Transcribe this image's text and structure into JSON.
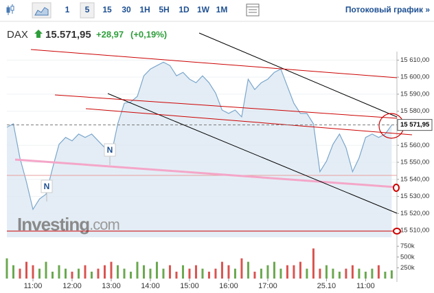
{
  "toolbar": {
    "intervals": [
      "1",
      "5",
      "15",
      "30",
      "1H",
      "5H",
      "1D",
      "1W",
      "1M"
    ],
    "selected_index": 1,
    "stream_link": "Потоковый график »"
  },
  "header": {
    "symbol": "DAX",
    "price": "15.571,95",
    "change": "+28,97",
    "change_percent": "(+0,19%)"
  },
  "watermark": {
    "brand": "Investing",
    "suffix": ".com"
  },
  "chart_data": [
    {
      "type": "area",
      "color": "#7aa6cc",
      "x": [
        0,
        1,
        2,
        3,
        4,
        5,
        6,
        7,
        8,
        9,
        10,
        11,
        12,
        13,
        14,
        15,
        16,
        17,
        18,
        19,
        20,
        21,
        22,
        23,
        24,
        25,
        26,
        27,
        28,
        29,
        30,
        31,
        32,
        33,
        34,
        35,
        36,
        37,
        38,
        39,
        40,
        41,
        42,
        43,
        44,
        45,
        46,
        47,
        48,
        49,
        50,
        51,
        52,
        53,
        54,
        55,
        56,
        57,
        58,
        59
      ],
      "values": [
        15570.6,
        15572.6,
        15552.6,
        15538.5,
        15522.4,
        15528.5,
        15531.3,
        15546.5,
        15560.6,
        15564.6,
        15562.6,
        15566.6,
        15564.6,
        15566.6,
        15562.6,
        15558.6,
        15554.6,
        15572.6,
        15584.7,
        15585.5,
        15588.7,
        15600.8,
        15604.8,
        15606.8,
        15608.8,
        15606.8,
        15600.8,
        15602.8,
        15598.8,
        15596.7,
        15600.8,
        15596.7,
        15590.7,
        15580.7,
        15578.7,
        15580.7,
        15576.7,
        15598.8,
        15592.7,
        15596.7,
        15598.8,
        15602.8,
        15604.8,
        15594.7,
        15584.7,
        15578.7,
        15578.7,
        15572.6,
        15544.5,
        15550.6,
        15560.6,
        15566.6,
        15558.6,
        15544.5,
        15552.6,
        15564.6,
        15566.6,
        15564.6,
        15566.6,
        15571.9
      ],
      "xlim": [
        0,
        59.8
      ],
      "xticks": [
        {
          "value": 4,
          "label": "11:00"
        },
        {
          "value": 10,
          "label": "12:00"
        },
        {
          "value": 16,
          "label": "13:00"
        },
        {
          "value": 22,
          "label": "14:00"
        },
        {
          "value": 28,
          "label": "15:00"
        },
        {
          "value": 34,
          "label": "16:00"
        },
        {
          "value": 40,
          "label": "17:00"
        },
        {
          "value": 49,
          "label": "25.10"
        },
        {
          "value": 55,
          "label": "11:00"
        }
      ],
      "ylim": [
        15506,
        15615
      ],
      "yticks": [
        {
          "value": 15610,
          "label": "15 610,00"
        },
        {
          "value": 15600,
          "label": "15 600,00"
        },
        {
          "value": 15590,
          "label": "15 590,00"
        },
        {
          "value": 15580,
          "label": "15 580,00"
        },
        {
          "value": 15560,
          "label": "15 560,00"
        },
        {
          "value": 15550,
          "label": "15 550,00"
        },
        {
          "value": 15540,
          "label": "15 540,00"
        },
        {
          "value": 15530,
          "label": "15 530,00"
        },
        {
          "value": 15520,
          "label": "15 520,00"
        },
        {
          "value": 15510,
          "label": "15 510,00"
        }
      ],
      "grid": true,
      "last_price": 15571.95,
      "last_price_label": "15 571,95",
      "news_markers": [
        "N",
        "N"
      ]
    },
    {
      "type": "bar",
      "up_color": "#6aa84f",
      "down_color": "#d9534f",
      "x": [
        0,
        1,
        2,
        3,
        4,
        5,
        6,
        7,
        8,
        9,
        10,
        11,
        12,
        13,
        14,
        15,
        16,
        17,
        18,
        19,
        20,
        21,
        22,
        23,
        24,
        25,
        26,
        27,
        28,
        29,
        30,
        31,
        32,
        33,
        34,
        35,
        36,
        37,
        38,
        39,
        40,
        41,
        42,
        43,
        44,
        45,
        46,
        47,
        48,
        49,
        50,
        51,
        52,
        53,
        54,
        55,
        56,
        57,
        58,
        59
      ],
      "values": [
        470000,
        310000,
        230000,
        390000,
        310000,
        230000,
        390000,
        160000,
        310000,
        230000,
        160000,
        230000,
        310000,
        160000,
        230000,
        310000,
        390000,
        310000,
        230000,
        160000,
        390000,
        310000,
        230000,
        390000,
        230000,
        310000,
        160000,
        310000,
        230000,
        310000,
        230000,
        160000,
        230000,
        390000,
        310000,
        230000,
        470000,
        390000,
        160000,
        230000,
        310000,
        390000,
        230000,
        310000,
        310000,
        390000,
        230000,
        700000,
        230000,
        310000,
        230000,
        160000,
        230000,
        310000,
        230000,
        160000,
        230000,
        310000,
        160000,
        190000
      ],
      "xlim": [
        0,
        59.8
      ],
      "ylim": [
        0,
        800000
      ],
      "yticks": [
        {
          "value": 750000,
          "label": "750k"
        },
        {
          "value": 500000,
          "label": "500k"
        },
        {
          "value": 250000,
          "label": "250k"
        }
      ]
    }
  ]
}
